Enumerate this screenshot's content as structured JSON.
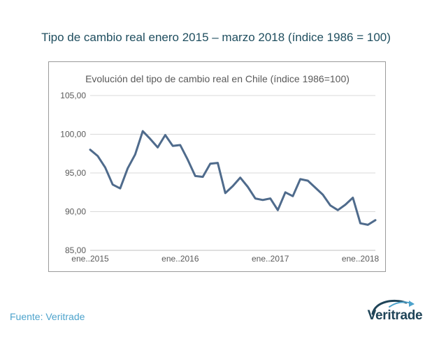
{
  "page": {
    "title": "Tipo de cambio real enero 2015 – marzo 2018 (índice 1986 = 100)",
    "source": "Fuente: Veritrade",
    "logo_text": "Veritrade"
  },
  "chart_data": {
    "type": "line",
    "title": "Evolución del tipo de cambio real en Chile (índice 1986=100)",
    "xlabel": "",
    "ylabel": "",
    "ylim": [
      85,
      105
    ],
    "yticks": [
      "85,00",
      "90,00",
      "95,00",
      "100,00",
      "105,00"
    ],
    "x": [
      "2015-01",
      "2015-02",
      "2015-03",
      "2015-04",
      "2015-05",
      "2015-06",
      "2015-07",
      "2015-08",
      "2015-09",
      "2015-10",
      "2015-11",
      "2015-12",
      "2016-01",
      "2016-02",
      "2016-03",
      "2016-04",
      "2016-05",
      "2016-06",
      "2016-07",
      "2016-08",
      "2016-09",
      "2016-10",
      "2016-11",
      "2016-12",
      "2017-01",
      "2017-02",
      "2017-03",
      "2017-04",
      "2017-05",
      "2017-06",
      "2017-07",
      "2017-08",
      "2017-09",
      "2017-10",
      "2017-11",
      "2017-12",
      "2018-01",
      "2018-02",
      "2018-03"
    ],
    "xticks": [
      {
        "label": "ene..2015",
        "x": "2015-01"
      },
      {
        "label": "ene..2016",
        "x": "2016-01"
      },
      {
        "label": "ene..2017",
        "x": "2017-01"
      },
      {
        "label": "ene..2018",
        "x": "2018-01"
      }
    ],
    "series": [
      {
        "name": "",
        "color": "#4f6b8c",
        "values": [
          98.0,
          97.2,
          95.7,
          93.5,
          93.0,
          95.6,
          97.4,
          100.4,
          99.4,
          98.3,
          99.9,
          98.5,
          98.6,
          96.7,
          94.6,
          94.5,
          96.2,
          96.3,
          92.4,
          93.3,
          94.4,
          93.2,
          91.7,
          91.5,
          91.7,
          90.2,
          92.5,
          92.0,
          94.2,
          94.0,
          93.1,
          92.2,
          90.8,
          90.2,
          90.9,
          91.8,
          88.5,
          88.3,
          88.9
        ]
      }
    ],
    "grid": true,
    "legend": "none"
  }
}
